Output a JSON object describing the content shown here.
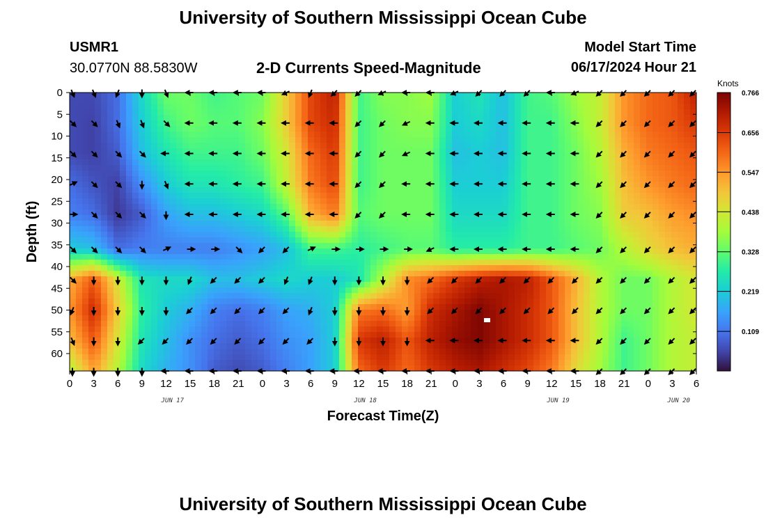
{
  "page": {
    "title": "University of Southern Mississippi Ocean Cube",
    "bottom_title": "University of Southern Mississippi Ocean Cube",
    "station_id": "USMR1",
    "station_coords": "30.0770N  88.5830W",
    "plot_title": "2-D Currents Speed-Magnitude",
    "model_start_label": "Model Start Time",
    "model_start_value": "06/17/2024 Hour 21"
  },
  "chart_data": {
    "type": "heatmap",
    "title": "2-D Currents Speed-Magnitude",
    "xlabel": "Forecast Time(Z)",
    "ylabel": "Depth (ft)",
    "x_tick_labels": [
      "0",
      "3",
      "6",
      "9",
      "12",
      "15",
      "18",
      "21",
      "0",
      "3",
      "6",
      "9",
      "12",
      "15",
      "18",
      "21",
      "0",
      "3",
      "6",
      "9",
      "12",
      "15",
      "18",
      "21",
      "0",
      "3",
      "6"
    ],
    "x_date_labels": [
      {
        "label": "JUN 17",
        "at_tick": 4.5
      },
      {
        "label": "JUN 18",
        "at_tick": 12.5
      },
      {
        "label": "JUN 19",
        "at_tick": 20.5
      },
      {
        "label": "JUN 20",
        "at_tick": 25.5
      }
    ],
    "y_tick_labels": [
      "0",
      "5",
      "10",
      "15",
      "20",
      "25",
      "30",
      "35",
      "40",
      "45",
      "50",
      "55",
      "60"
    ],
    "ylim": [
      0,
      64
    ],
    "y_inverted": true,
    "colorbar": {
      "unit": "Knots",
      "ticks": [
        "0.766",
        "0.656",
        "0.547",
        "0.438",
        "0.328",
        "0.219",
        "0.109"
      ],
      "range": [
        0.0,
        0.766
      ]
    },
    "depths": [
      0,
      7,
      14,
      21,
      28,
      36,
      43,
      50,
      57,
      64
    ],
    "speed_grid": [
      [
        0.06,
        0.06,
        0.1,
        0.24,
        0.34,
        0.34,
        0.3,
        0.32,
        0.34,
        0.48,
        0.64,
        0.7,
        0.3,
        0.36,
        0.36,
        0.38,
        0.22,
        0.26,
        0.2,
        0.3,
        0.32,
        0.38,
        0.42,
        0.55,
        0.6,
        0.62,
        0.7
      ],
      [
        0.06,
        0.05,
        0.1,
        0.22,
        0.3,
        0.34,
        0.32,
        0.32,
        0.36,
        0.48,
        0.64,
        0.68,
        0.3,
        0.34,
        0.36,
        0.36,
        0.22,
        0.24,
        0.2,
        0.3,
        0.3,
        0.36,
        0.42,
        0.55,
        0.6,
        0.62,
        0.66
      ],
      [
        0.06,
        0.05,
        0.08,
        0.2,
        0.26,
        0.3,
        0.3,
        0.3,
        0.34,
        0.44,
        0.6,
        0.66,
        0.3,
        0.34,
        0.34,
        0.34,
        0.2,
        0.22,
        0.2,
        0.3,
        0.3,
        0.34,
        0.4,
        0.52,
        0.58,
        0.6,
        0.62
      ],
      [
        0.1,
        0.07,
        0.05,
        0.14,
        0.22,
        0.26,
        0.26,
        0.28,
        0.3,
        0.42,
        0.58,
        0.64,
        0.3,
        0.34,
        0.34,
        0.34,
        0.22,
        0.22,
        0.22,
        0.3,
        0.3,
        0.34,
        0.38,
        0.5,
        0.55,
        0.58,
        0.6
      ],
      [
        0.12,
        0.1,
        0.04,
        0.08,
        0.16,
        0.2,
        0.2,
        0.22,
        0.24,
        0.32,
        0.52,
        0.58,
        0.32,
        0.34,
        0.34,
        0.34,
        0.24,
        0.24,
        0.24,
        0.3,
        0.3,
        0.34,
        0.36,
        0.48,
        0.5,
        0.54,
        0.56
      ],
      [
        0.22,
        0.2,
        0.1,
        0.12,
        0.12,
        0.12,
        0.12,
        0.14,
        0.16,
        0.2,
        0.3,
        0.3,
        0.28,
        0.3,
        0.32,
        0.32,
        0.28,
        0.28,
        0.28,
        0.3,
        0.3,
        0.32,
        0.34,
        0.4,
        0.46,
        0.5,
        0.52
      ],
      [
        0.52,
        0.62,
        0.44,
        0.26,
        0.24,
        0.24,
        0.2,
        0.2,
        0.22,
        0.24,
        0.22,
        0.22,
        0.26,
        0.4,
        0.56,
        0.6,
        0.66,
        0.7,
        0.72,
        0.7,
        0.62,
        0.52,
        0.4,
        0.34,
        0.34,
        0.4,
        0.44
      ],
      [
        0.55,
        0.68,
        0.48,
        0.28,
        0.22,
        0.18,
        0.12,
        0.1,
        0.12,
        0.16,
        0.18,
        0.22,
        0.58,
        0.6,
        0.54,
        0.68,
        0.72,
        0.76,
        0.72,
        0.68,
        0.62,
        0.5,
        0.4,
        0.34,
        0.34,
        0.4,
        0.44
      ],
      [
        0.5,
        0.62,
        0.44,
        0.26,
        0.2,
        0.14,
        0.1,
        0.08,
        0.1,
        0.14,
        0.16,
        0.22,
        0.66,
        0.7,
        0.62,
        0.7,
        0.74,
        0.76,
        0.72,
        0.68,
        0.62,
        0.5,
        0.4,
        0.3,
        0.34,
        0.4,
        0.42
      ],
      [
        0.4,
        0.54,
        0.4,
        0.24,
        0.18,
        0.14,
        0.08,
        0.06,
        0.08,
        0.12,
        0.16,
        0.22,
        0.6,
        0.66,
        0.6,
        0.66,
        0.7,
        0.72,
        0.68,
        0.64,
        0.58,
        0.46,
        0.38,
        0.3,
        0.34,
        0.4,
        0.42
      ]
    ],
    "vector_rows": [
      {
        "depth": 0,
        "dirs": [
          "sse",
          "sse",
          "ssw",
          "s",
          "sse",
          "w",
          "w",
          "w",
          "w",
          "wsw",
          "ssw",
          "sw",
          "sw",
          "wsw",
          "w",
          "w",
          "wsw",
          "sw",
          "sw",
          "sw",
          "w",
          "wsw",
          "sw",
          "sw",
          "sw",
          "sw",
          "sw"
        ]
      },
      {
        "depth": 7,
        "dirs": [
          "se",
          "se",
          "sse",
          "sse",
          "se",
          "w",
          "w",
          "w",
          "w",
          "w",
          "w",
          "w",
          "sw",
          "sw",
          "wsw",
          "w",
          "w",
          "w",
          "w",
          "w",
          "w",
          "w",
          "sw",
          "sw",
          "sw",
          "sw",
          "sw"
        ]
      },
      {
        "depth": 14,
        "dirs": [
          "se",
          "se",
          "se",
          "se",
          "w",
          "w",
          "w",
          "w",
          "w",
          "w",
          "w",
          "w",
          "sw",
          "sw",
          "wsw",
          "w",
          "w",
          "w",
          "w",
          "w",
          "w",
          "w",
          "sw",
          "sw",
          "sw",
          "sw",
          "sw"
        ]
      },
      {
        "depth": 21,
        "dirs": [
          "ene",
          "se",
          "se",
          "s",
          "sse",
          "w",
          "w",
          "w",
          "w",
          "w",
          "w",
          "w",
          "sw",
          "sw",
          "w",
          "w",
          "w",
          "w",
          "w",
          "w",
          "w",
          "w",
          "sw",
          "sw",
          "sw",
          "sw",
          "sw"
        ]
      },
      {
        "depth": 28,
        "dirs": [
          "e",
          "se",
          "se",
          "se",
          "s",
          "w",
          "w",
          "w",
          "w",
          "w",
          "w",
          "w",
          "sw",
          "sw",
          "w",
          "w",
          "w",
          "w",
          "w",
          "w",
          "w",
          "w",
          "sw",
          "sw",
          "sw",
          "sw",
          "sw"
        ]
      },
      {
        "depth": 36,
        "dirs": [
          "se",
          "se",
          "se",
          "se",
          "ene",
          "e",
          "e",
          "se",
          "sw",
          "sw",
          "ene",
          "e",
          "e",
          "e",
          "e",
          "wsw",
          "w",
          "w",
          "w",
          "w",
          "w",
          "w",
          "sw",
          "sw",
          "sw",
          "sw",
          "sw"
        ]
      },
      {
        "depth": 43,
        "dirs": [
          "se",
          "s",
          "s",
          "s",
          "s",
          "ssw",
          "sw",
          "sw",
          "sw",
          "ssw",
          "ssw",
          "s",
          "s",
          "s",
          "s",
          "sw",
          "sw",
          "sw",
          "sw",
          "sw",
          "sw",
          "sw",
          "sw",
          "sw",
          "sw",
          "sw",
          "sw"
        ]
      },
      {
        "depth": 50,
        "dirs": [
          "ssw",
          "s",
          "s",
          "s",
          "s",
          "sw",
          "sw",
          "sw",
          "sw",
          "sw",
          "ssw",
          "s",
          "s",
          "s",
          "s",
          "sw",
          "sw",
          "sw",
          "sw",
          "sw",
          "sw",
          "sw",
          "sw",
          "sw",
          "sw",
          "sw",
          "sw"
        ]
      },
      {
        "depth": 57,
        "dirs": [
          "sse",
          "s",
          "s",
          "sw",
          "sw",
          "sw",
          "sw",
          "sw",
          "sw",
          "sw",
          "sw",
          "s",
          "s",
          "s",
          "s",
          "w",
          "w",
          "w",
          "w",
          "w",
          "w",
          "w",
          "sw",
          "sw",
          "sw",
          "sw",
          "sw"
        ]
      },
      {
        "depth": 64,
        "dirs": [
          "s",
          "s",
          "s",
          "s",
          "w",
          "w",
          "w",
          "w",
          "w",
          "w",
          "w",
          "w",
          "w",
          "w",
          "w",
          "w",
          "w",
          "w",
          "w",
          "w",
          "w",
          "w",
          "sw",
          "sw",
          "sw",
          "sw",
          "sw"
        ]
      }
    ]
  }
}
